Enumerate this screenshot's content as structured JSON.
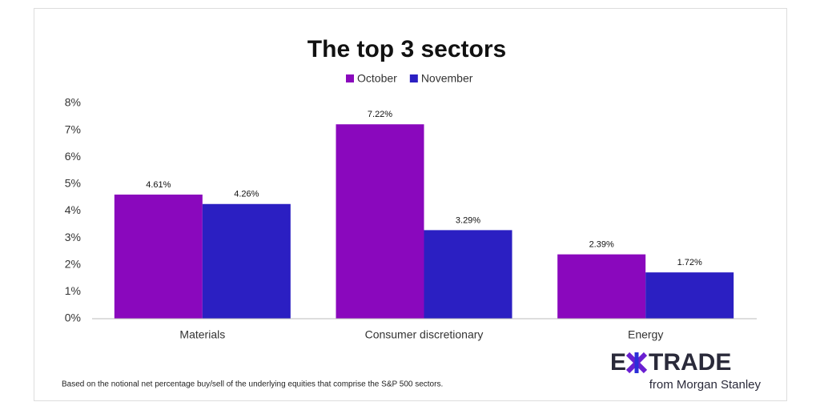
{
  "chart_data": {
    "type": "bar",
    "title": "The top 3 sectors",
    "categories": [
      "Materials",
      "Consumer discretionary",
      "Energy"
    ],
    "series": [
      {
        "name": "October",
        "color": "#8a08bd",
        "values": [
          4.61,
          7.22,
          2.39
        ],
        "value_labels": [
          "4.61%",
          "7.22%",
          "2.39%"
        ]
      },
      {
        "name": "November",
        "color": "#2b1fc2",
        "values": [
          4.26,
          3.29,
          1.72
        ],
        "value_labels": [
          "4.26%",
          "3.29%",
          "1.72%"
        ]
      }
    ],
    "ylim": [
      0,
      8
    ],
    "yticks": [
      {
        "value": 0,
        "label": "0%"
      },
      {
        "value": 1,
        "label": "1%"
      },
      {
        "value": 2,
        "label": "2%"
      },
      {
        "value": 3,
        "label": "3%"
      },
      {
        "value": 4,
        "label": "4%"
      },
      {
        "value": 5,
        "label": "5%"
      },
      {
        "value": 6,
        "label": "6%"
      },
      {
        "value": 7,
        "label": "7%"
      },
      {
        "value": 8,
        "label": "8%"
      }
    ],
    "grid": false,
    "legend": "top",
    "note": "Based on the notional net percentage buy/sell of the underlying equities that comprise the S&P 500 sectors."
  },
  "logo": {
    "left": "E",
    "right": "TRADE",
    "tagline": "from Morgan Stanley"
  }
}
